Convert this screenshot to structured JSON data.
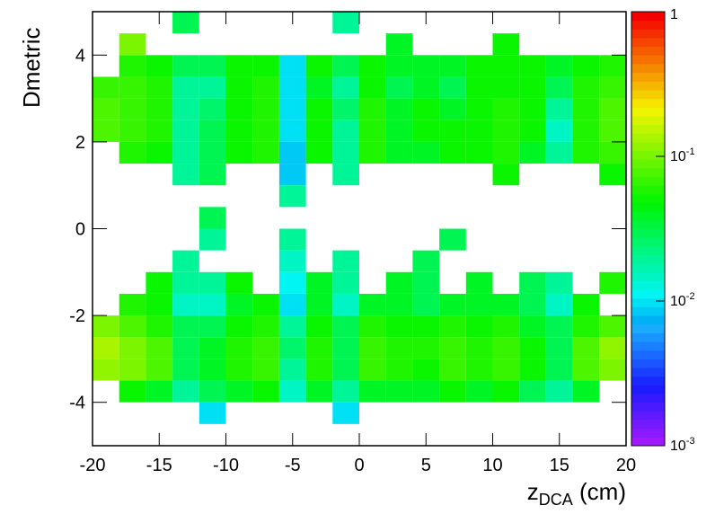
{
  "chart_data": {
    "type": "heatmap",
    "y_label": "Dmetric",
    "x_label": {
      "main": "z",
      "sub": "DCA",
      "rest": " (cm)"
    },
    "xlim": [
      -20,
      20
    ],
    "ylim": [
      -5,
      5
    ],
    "xticks": [
      -20,
      -15,
      -10,
      -5,
      0,
      5,
      10,
      15,
      20
    ],
    "yticks": [
      -4,
      -2,
      0,
      2,
      4
    ],
    "x_bins": [
      -20,
      -18,
      -16,
      -14,
      -12,
      -10,
      -8,
      -6,
      -4,
      -2,
      0,
      2,
      4,
      6,
      8,
      10,
      12,
      14,
      16,
      18,
      20
    ],
    "y_bins": [
      -5,
      -4.5,
      -4,
      -3.5,
      -3,
      -2.5,
      -2,
      -1.5,
      -1,
      -0.5,
      0,
      0.5,
      1,
      1.5,
      2,
      2.5,
      3,
      3.5,
      4,
      4.5,
      5
    ],
    "zlim": [
      0.001,
      1
    ],
    "zlog": true,
    "zticks": [
      {
        "value": 0.001,
        "label": "10",
        "exponent": "-3"
      },
      {
        "value": 0.01,
        "label": "10",
        "exponent": "-2"
      },
      {
        "value": 0.1,
        "label": "10",
        "exponent": "-1"
      },
      1
    ],
    "values": [
      [
        null,
        null,
        null,
        null,
        null,
        null,
        null,
        null,
        null,
        null,
        null,
        null,
        null,
        null,
        null,
        null,
        null,
        null,
        null,
        null
      ],
      [
        null,
        null,
        null,
        null,
        0.01,
        null,
        null,
        null,
        null,
        0.01,
        null,
        null,
        null,
        null,
        null,
        null,
        null,
        null,
        null,
        null
      ],
      [
        null,
        0.05,
        0.04,
        0.02,
        0.03,
        0.04,
        0.05,
        0.015,
        0.04,
        0.02,
        0.04,
        0.04,
        0.04,
        0.05,
        0.04,
        0.05,
        0.03,
        0.02,
        0.04,
        null
      ],
      [
        0.12,
        0.1,
        0.08,
        0.03,
        0.04,
        0.06,
        0.07,
        0.02,
        0.06,
        0.03,
        0.07,
        0.06,
        0.05,
        0.07,
        0.06,
        0.07,
        0.05,
        0.03,
        0.08,
        0.1
      ],
      [
        0.13,
        0.1,
        0.08,
        0.03,
        0.04,
        0.06,
        0.07,
        0.025,
        0.06,
        0.03,
        0.07,
        0.06,
        0.06,
        0.07,
        0.06,
        0.07,
        0.05,
        0.03,
        0.08,
        0.11
      ],
      [
        0.1,
        0.08,
        0.06,
        0.03,
        0.03,
        0.05,
        0.06,
        0.02,
        0.05,
        0.03,
        0.06,
        0.05,
        0.05,
        0.06,
        0.05,
        0.06,
        0.04,
        0.03,
        0.06,
        0.08
      ],
      [
        null,
        0.06,
        0.05,
        0.015,
        0.015,
        0.04,
        0.05,
        0.01,
        0.04,
        0.015,
        0.04,
        0.04,
        0.03,
        0.04,
        0.04,
        0.04,
        0.03,
        0.015,
        0.05,
        null
      ],
      [
        null,
        null,
        0.05,
        0.02,
        0.02,
        0.05,
        null,
        0.012,
        0.04,
        0.02,
        null,
        0.04,
        0.03,
        null,
        0.04,
        null,
        0.03,
        0.02,
        null,
        0.06
      ],
      [
        null,
        null,
        null,
        0.02,
        null,
        null,
        null,
        0.015,
        null,
        0.02,
        null,
        null,
        0.03,
        null,
        null,
        null,
        null,
        null,
        null,
        null
      ],
      [
        null,
        null,
        null,
        null,
        0.02,
        null,
        null,
        0.02,
        null,
        null,
        null,
        null,
        null,
        0.03,
        null,
        null,
        null,
        null,
        null,
        null
      ],
      [
        null,
        null,
        null,
        null,
        0.03,
        null,
        null,
        null,
        null,
        null,
        null,
        null,
        null,
        null,
        null,
        null,
        null,
        null,
        null,
        null
      ],
      [
        null,
        null,
        null,
        null,
        null,
        null,
        null,
        0.02,
        null,
        null,
        null,
        null,
        null,
        null,
        null,
        null,
        null,
        null,
        null,
        null
      ],
      [
        null,
        null,
        null,
        0.02,
        0.03,
        null,
        null,
        0.008,
        null,
        0.02,
        null,
        null,
        null,
        null,
        null,
        0.05,
        null,
        null,
        null,
        0.05
      ],
      [
        null,
        0.06,
        0.05,
        0.02,
        0.03,
        0.05,
        0.06,
        0.008,
        0.05,
        0.02,
        0.06,
        0.04,
        0.04,
        0.05,
        0.05,
        0.06,
        0.04,
        0.02,
        0.06,
        0.07
      ],
      [
        0.08,
        0.07,
        0.06,
        0.02,
        0.03,
        0.05,
        0.06,
        0.01,
        0.05,
        0.02,
        0.06,
        0.04,
        0.05,
        0.05,
        0.05,
        0.06,
        0.05,
        0.015,
        0.06,
        0.08
      ],
      [
        0.08,
        0.07,
        0.06,
        0.02,
        0.025,
        0.05,
        0.06,
        0.01,
        0.05,
        0.025,
        0.06,
        0.04,
        0.05,
        0.04,
        0.05,
        0.06,
        0.05,
        0.02,
        0.06,
        0.08
      ],
      [
        0.07,
        0.07,
        0.06,
        0.02,
        0.02,
        0.05,
        0.06,
        0.01,
        0.04,
        0.02,
        0.05,
        0.03,
        0.04,
        0.03,
        0.05,
        0.05,
        0.05,
        0.03,
        0.06,
        0.07
      ],
      [
        null,
        0.06,
        0.05,
        0.03,
        0.03,
        0.05,
        0.05,
        0.01,
        0.05,
        0.03,
        0.05,
        0.04,
        0.04,
        0.04,
        0.05,
        0.05,
        0.05,
        0.04,
        0.05,
        0.06
      ],
      [
        null,
        0.1,
        null,
        null,
        null,
        null,
        null,
        null,
        null,
        null,
        null,
        0.04,
        null,
        null,
        null,
        0.05,
        null,
        null,
        null,
        null
      ],
      [
        null,
        null,
        null,
        0.03,
        null,
        null,
        null,
        null,
        null,
        0.02,
        null,
        null,
        null,
        null,
        null,
        null,
        null,
        null,
        null,
        null
      ]
    ]
  }
}
